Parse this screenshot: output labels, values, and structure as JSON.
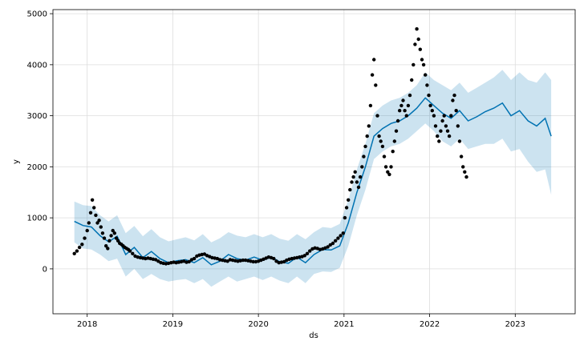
{
  "chart_data": {
    "type": "line",
    "xlabel": "ds",
    "ylabel": "y",
    "xlim": [
      2017.6,
      2023.7
    ],
    "ylim": [
      -880,
      5080
    ],
    "x_ticks": [
      {
        "value": 2018,
        "label": "2018"
      },
      {
        "value": 2019,
        "label": "2019"
      },
      {
        "value": 2020,
        "label": "2020"
      },
      {
        "value": 2021,
        "label": "2021"
      },
      {
        "value": 2022,
        "label": "2022"
      },
      {
        "value": 2023,
        "label": "2023"
      }
    ],
    "y_ticks": [
      {
        "value": 0,
        "label": "0"
      },
      {
        "value": 1000,
        "label": "1000"
      },
      {
        "value": 2000,
        "label": "2000"
      },
      {
        "value": 3000,
        "label": "3000"
      },
      {
        "value": 4000,
        "label": "4000"
      },
      {
        "value": 5000,
        "label": "5000"
      }
    ],
    "grid": true,
    "colors": {
      "forecast_line": "#0072B2",
      "interval_band": "#0072B2",
      "observed_points": "#000000"
    },
    "forecast": {
      "x": [
        2017.85,
        2017.95,
        2018.05,
        2018.15,
        2018.25,
        2018.35,
        2018.45,
        2018.55,
        2018.65,
        2018.75,
        2018.85,
        2018.95,
        2019.05,
        2019.15,
        2019.25,
        2019.35,
        2019.45,
        2019.55,
        2019.65,
        2019.75,
        2019.85,
        2019.95,
        2020.05,
        2020.15,
        2020.25,
        2020.35,
        2020.45,
        2020.55,
        2020.65,
        2020.75,
        2020.85,
        2020.95,
        2021.05,
        2021.15,
        2021.25,
        2021.35,
        2021.45,
        2021.55,
        2021.65,
        2021.75,
        2021.85,
        2021.95,
        2022.05,
        2022.15,
        2022.25,
        2022.35,
        2022.45,
        2022.55,
        2022.65,
        2022.75,
        2022.85,
        2022.95,
        2023.05,
        2023.15,
        2023.25,
        2023.35,
        2023.42
      ],
      "yhat": [
        930,
        850,
        820,
        650,
        530,
        640,
        280,
        420,
        220,
        340,
        200,
        120,
        160,
        180,
        120,
        220,
        80,
        150,
        280,
        200,
        170,
        230,
        170,
        230,
        140,
        110,
        230,
        120,
        280,
        380,
        370,
        450,
        900,
        1500,
        2000,
        2600,
        2750,
        2850,
        2900,
        3000,
        3150,
        3350,
        3200,
        3050,
        2950,
        3100,
        2900,
        2980,
        3080,
        3150,
        3250,
        3000,
        3100,
        2900,
        2800,
        2950,
        2600
      ],
      "lower": [
        520,
        400,
        380,
        280,
        150,
        200,
        -150,
        0,
        -200,
        -100,
        -200,
        -250,
        -220,
        -200,
        -280,
        -200,
        -350,
        -250,
        -150,
        -250,
        -200,
        -150,
        -220,
        -150,
        -230,
        -280,
        -150,
        -280,
        -100,
        -50,
        -60,
        20,
        450,
        1050,
        1550,
        2150,
        2300,
        2400,
        2450,
        2550,
        2700,
        2850,
        2700,
        2500,
        2400,
        2550,
        2350,
        2400,
        2450,
        2450,
        2550,
        2300,
        2350,
        2100,
        1900,
        1950,
        1450
      ],
      "upper": [
        1320,
        1250,
        1230,
        1050,
        930,
        1050,
        700,
        840,
        640,
        780,
        620,
        540,
        580,
        620,
        560,
        680,
        520,
        600,
        720,
        650,
        620,
        680,
        620,
        680,
        590,
        550,
        680,
        580,
        720,
        820,
        800,
        880,
        1350,
        1950,
        2450,
        3050,
        3200,
        3300,
        3350,
        3450,
        3600,
        3850,
        3700,
        3600,
        3500,
        3650,
        3450,
        3550,
        3650,
        3750,
        3900,
        3700,
        3850,
        3700,
        3650,
        3850,
        3700
      ]
    },
    "observed": {
      "x": [
        2017.85,
        2017.88,
        2017.91,
        2017.94,
        2017.97,
        2018.0,
        2018.02,
        2018.04,
        2018.06,
        2018.08,
        2018.1,
        2018.12,
        2018.14,
        2018.16,
        2018.18,
        2018.2,
        2018.22,
        2018.24,
        2018.26,
        2018.28,
        2018.3,
        2018.32,
        2018.34,
        2018.36,
        2018.38,
        2018.4,
        2018.42,
        2018.44,
        2018.46,
        2018.48,
        2018.5,
        2018.53,
        2018.56,
        2018.59,
        2018.62,
        2018.65,
        2018.68,
        2018.71,
        2018.74,
        2018.77,
        2018.8,
        2018.83,
        2018.86,
        2018.89,
        2018.92,
        2018.95,
        2018.98,
        2019.01,
        2019.04,
        2019.07,
        2019.1,
        2019.13,
        2019.16,
        2019.19,
        2019.22,
        2019.25,
        2019.28,
        2019.31,
        2019.34,
        2019.37,
        2019.4,
        2019.43,
        2019.46,
        2019.49,
        2019.52,
        2019.55,
        2019.58,
        2019.61,
        2019.64,
        2019.67,
        2019.7,
        2019.73,
        2019.76,
        2019.79,
        2019.82,
        2019.85,
        2019.88,
        2019.91,
        2019.94,
        2019.97,
        2020.0,
        2020.03,
        2020.06,
        2020.09,
        2020.12,
        2020.15,
        2020.18,
        2020.21,
        2020.24,
        2020.27,
        2020.3,
        2020.33,
        2020.36,
        2020.39,
        2020.42,
        2020.45,
        2020.48,
        2020.51,
        2020.54,
        2020.57,
        2020.6,
        2020.63,
        2020.66,
        2020.69,
        2020.72,
        2020.75,
        2020.78,
        2020.81,
        2020.84,
        2020.87,
        2020.9,
        2020.93,
        2020.96,
        2020.99,
        2021.01,
        2021.03,
        2021.05,
        2021.07,
        2021.09,
        2021.11,
        2021.13,
        2021.15,
        2021.17,
        2021.19,
        2021.21,
        2021.23,
        2021.25,
        2021.27,
        2021.29,
        2021.31,
        2021.33,
        2021.35,
        2021.37,
        2021.39,
        2021.41,
        2021.43,
        2021.45,
        2021.47,
        2021.49,
        2021.51,
        2021.53,
        2021.55,
        2021.57,
        2021.59,
        2021.61,
        2021.63,
        2021.65,
        2021.67,
        2021.69,
        2021.71,
        2021.73,
        2021.75,
        2021.77,
        2021.79,
        2021.81,
        2021.83,
        2021.85,
        2021.87,
        2021.89,
        2021.91,
        2021.93,
        2021.95,
        2021.97,
        2021.99,
        2022.01,
        2022.03,
        2022.05,
        2022.07,
        2022.09,
        2022.11,
        2022.13,
        2022.15,
        2022.17,
        2022.19,
        2022.21,
        2022.23,
        2022.25,
        2022.27,
        2022.29,
        2022.31,
        2022.33,
        2022.35,
        2022.37,
        2022.39,
        2022.41,
        2022.43
      ],
      "y": [
        300,
        350,
        420,
        480,
        600,
        750,
        900,
        1100,
        1350,
        1200,
        1050,
        900,
        950,
        820,
        700,
        600,
        450,
        400,
        550,
        650,
        750,
        700,
        600,
        550,
        500,
        480,
        450,
        420,
        400,
        380,
        350,
        300,
        250,
        230,
        220,
        210,
        200,
        210,
        200,
        190,
        180,
        150,
        120,
        110,
        100,
        110,
        120,
        130,
        120,
        130,
        140,
        150,
        130,
        140,
        180,
        200,
        250,
        270,
        280,
        290,
        260,
        240,
        220,
        210,
        200,
        180,
        170,
        160,
        150,
        180,
        170,
        160,
        150,
        160,
        170,
        170,
        160,
        150,
        140,
        140,
        150,
        170,
        190,
        210,
        230,
        220,
        200,
        150,
        120,
        130,
        140,
        170,
        190,
        200,
        210,
        220,
        230,
        240,
        260,
        300,
        350,
        390,
        410,
        400,
        380,
        390,
        410,
        430,
        470,
        500,
        550,
        600,
        650,
        700,
        1000,
        1200,
        1350,
        1550,
        1700,
        1800,
        1900,
        1700,
        1600,
        1800,
        2000,
        2200,
        2400,
        2600,
        2800,
        3200,
        3800,
        4100,
        3600,
        3000,
        2600,
        2500,
        2400,
        2200,
        2000,
        1900,
        1850,
        2000,
        2300,
        2500,
        2700,
        2900,
        3100,
        3200,
        3300,
        3100,
        3000,
        3200,
        3400,
        3700,
        4000,
        4400,
        4700,
        4500,
        4300,
        4100,
        4000,
        3800,
        3600,
        3400,
        3200,
        3100,
        3000,
        2800,
        2600,
        2500,
        2700,
        2900,
        3000,
        2800,
        2700,
        2600,
        3000,
        3300,
        3400,
        3100,
        2800,
        2500,
        2200,
        2000,
        1900,
        1800
      ]
    }
  }
}
